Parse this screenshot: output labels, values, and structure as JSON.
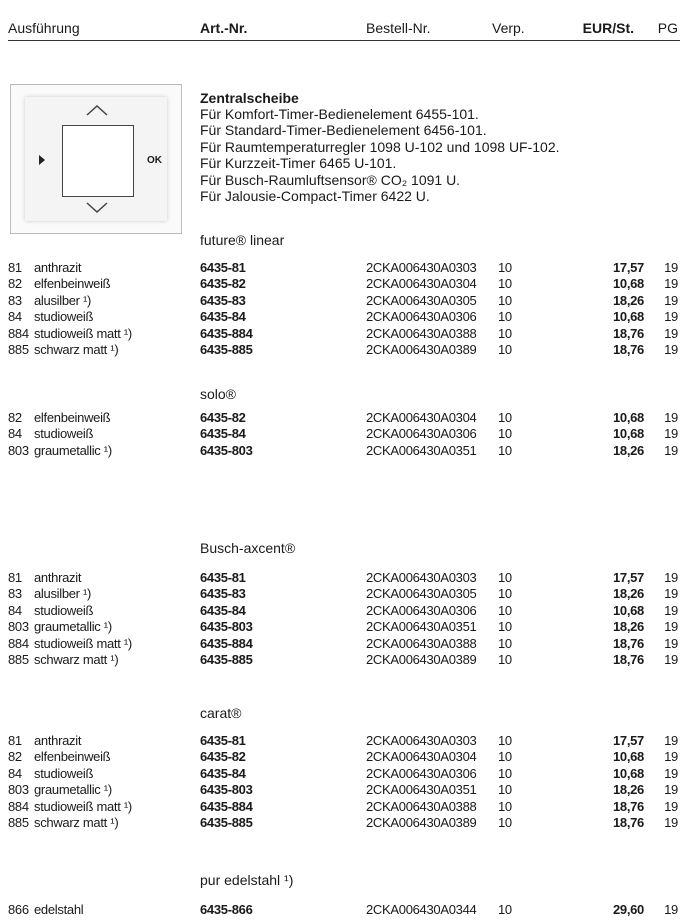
{
  "header": {
    "columns": [
      "Ausführung",
      "Art.-Nr.",
      "Bestell-Nr.",
      "Verp.",
      "EUR/St.",
      "PG"
    ]
  },
  "product": {
    "image": {
      "ok_label": "OK"
    },
    "title": "Zentralscheibe",
    "description": [
      "Für Komfort-Timer-Bedienelement 6455-101.",
      "Für Standard-Timer-Bedienelement 6456-101.",
      "Für Raumtemperaturregler 1098 U-102 und 1098 UF-102.",
      "Für Kurzzeit-Timer 6465 U-101.",
      "Für Busch-Raumluftsensor® CO₂ 1091 U.",
      "Für Jalousie-Compact-Timer 6422 U."
    ]
  },
  "sections": [
    {
      "name": "future® linear",
      "rows": [
        [
          "81",
          "anthrazit",
          "6435-81",
          "2CKA006430A0303",
          "10",
          "17,57",
          "19"
        ],
        [
          "82",
          "elfenbeinweiß",
          "6435-82",
          "2CKA006430A0304",
          "10",
          "10,68",
          "19"
        ],
        [
          "83",
          "alusilber ¹)",
          "6435-83",
          "2CKA006430A0305",
          "10",
          "18,26",
          "19"
        ],
        [
          "84",
          "studioweiß",
          "6435-84",
          "2CKA006430A0306",
          "10",
          "10,68",
          "19"
        ],
        [
          "884",
          "studioweiß matt ¹)",
          "6435-884",
          "2CKA006430A0388",
          "10",
          "18,76",
          "19"
        ],
        [
          "885",
          "schwarz matt ¹)",
          "6435-885",
          "2CKA006430A0389",
          "10",
          "18,76",
          "19"
        ]
      ]
    },
    {
      "name": "solo®",
      "rows": [
        [
          "82",
          "elfenbeinweiß",
          "6435-82",
          "2CKA006430A0304",
          "10",
          "10,68",
          "19"
        ],
        [
          "84",
          "studioweiß",
          "6435-84",
          "2CKA006430A0306",
          "10",
          "10,68",
          "19"
        ],
        [
          "803",
          "graumetallic ¹)",
          "6435-803",
          "2CKA006430A0351",
          "10",
          "18,26",
          "19"
        ]
      ]
    },
    {
      "name": "Busch-axcent®",
      "rows": [
        [
          "81",
          "anthrazit",
          "6435-81",
          "2CKA006430A0303",
          "10",
          "17,57",
          "19"
        ],
        [
          "83",
          "alusilber ¹)",
          "6435-83",
          "2CKA006430A0305",
          "10",
          "18,26",
          "19"
        ],
        [
          "84",
          "studioweiß",
          "6435-84",
          "2CKA006430A0306",
          "10",
          "10,68",
          "19"
        ],
        [
          "803",
          "graumetallic ¹)",
          "6435-803",
          "2CKA006430A0351",
          "10",
          "18,26",
          "19"
        ],
        [
          "884",
          "studioweiß matt ¹)",
          "6435-884",
          "2CKA006430A0388",
          "10",
          "18,76",
          "19"
        ],
        [
          "885",
          "schwarz matt ¹)",
          "6435-885",
          "2CKA006430A0389",
          "10",
          "18,76",
          "19"
        ]
      ]
    },
    {
      "name": "carat®",
      "rows": [
        [
          "81",
          "anthrazit",
          "6435-81",
          "2CKA006430A0303",
          "10",
          "17,57",
          "19"
        ],
        [
          "82",
          "elfenbeinweiß",
          "6435-82",
          "2CKA006430A0304",
          "10",
          "10,68",
          "19"
        ],
        [
          "84",
          "studioweiß",
          "6435-84",
          "2CKA006430A0306",
          "10",
          "10,68",
          "19"
        ],
        [
          "803",
          "graumetallic ¹)",
          "6435-803",
          "2CKA006430A0351",
          "10",
          "18,26",
          "19"
        ],
        [
          "884",
          "studioweiß matt ¹)",
          "6435-884",
          "2CKA006430A0388",
          "10",
          "18,76",
          "19"
        ],
        [
          "885",
          "schwarz matt ¹)",
          "6435-885",
          "2CKA006430A0389",
          "10",
          "18,76",
          "19"
        ]
      ]
    },
    {
      "name": "pur edelstahl ¹)",
      "rows": [
        [
          "866",
          "edelstahl",
          "6435-866",
          "2CKA006430A0344",
          "10",
          "29,60",
          "19"
        ]
      ]
    }
  ]
}
